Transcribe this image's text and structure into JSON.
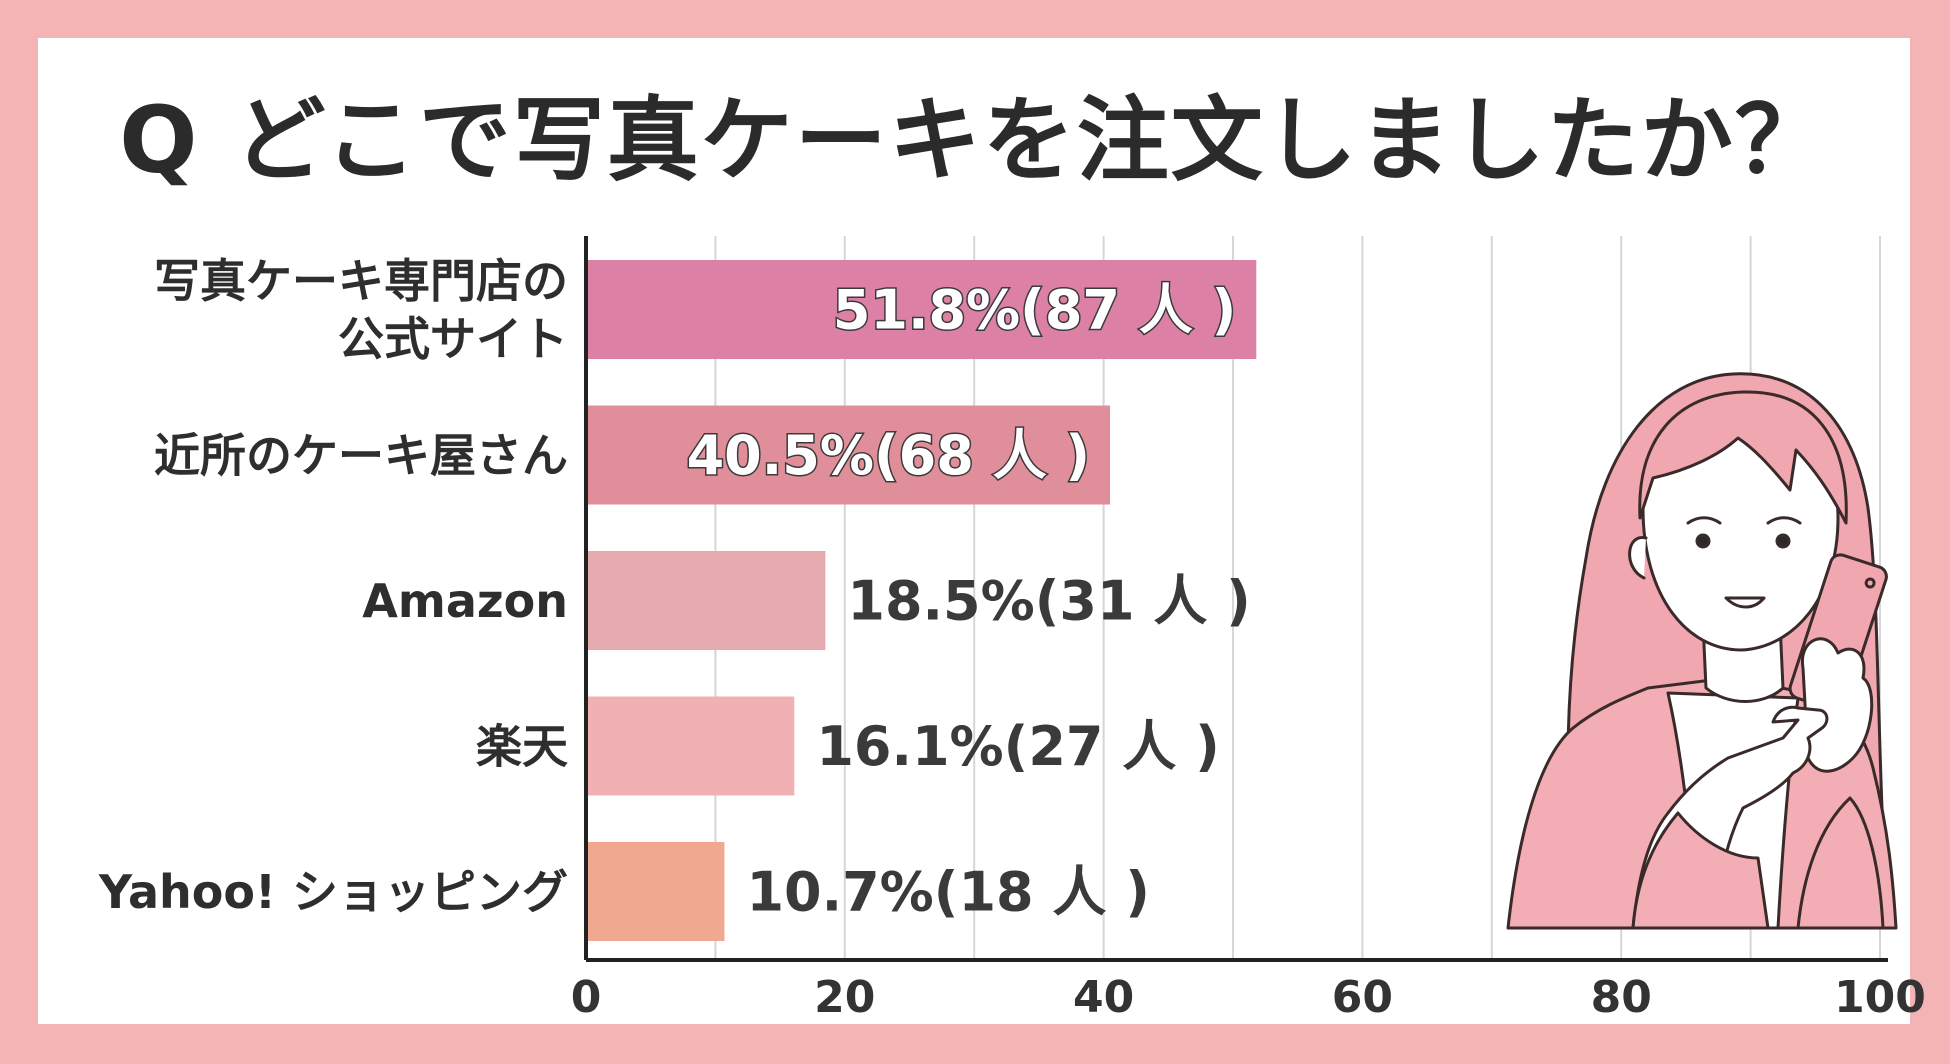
{
  "chart_data": {
    "type": "bar",
    "orientation": "horizontal",
    "title": "Q どこで写真ケーキを注文しましたか？",
    "categories": [
      [
        "写真ケーキ専門店の",
        "公式サイト"
      ],
      [
        "近所のケーキ屋さん"
      ],
      [
        "Amazon"
      ],
      [
        "楽天"
      ],
      [
        "Yahoo! ショッピング"
      ]
    ],
    "values": [
      51.8,
      40.5,
      18.5,
      16.1,
      10.7
    ],
    "counts": [
      87,
      68,
      31,
      27,
      18
    ],
    "value_labels": [
      "51.8%(87 人 )",
      "40.5%(68 人 )",
      "18.5%(31 人 )",
      "16.1%(27 人 )",
      "10.7%(18 人 )"
    ],
    "bar_colors": [
      "#dc80a6",
      "#e08f9a",
      "#e5a9ae",
      "#f1b1b4",
      "#f0a891"
    ],
    "xlim": [
      0,
      100
    ],
    "xticks": [
      "0",
      "20",
      "40",
      "60",
      "80",
      "100"
    ],
    "xtick_values": [
      0,
      20,
      40,
      60,
      80,
      100
    ],
    "grid": true
  },
  "colors": {
    "background": "#f4b3b5",
    "panel": "#ffffff",
    "text": "#2e2e2e",
    "grid": "#d6d6d6",
    "axis": "#222222"
  }
}
